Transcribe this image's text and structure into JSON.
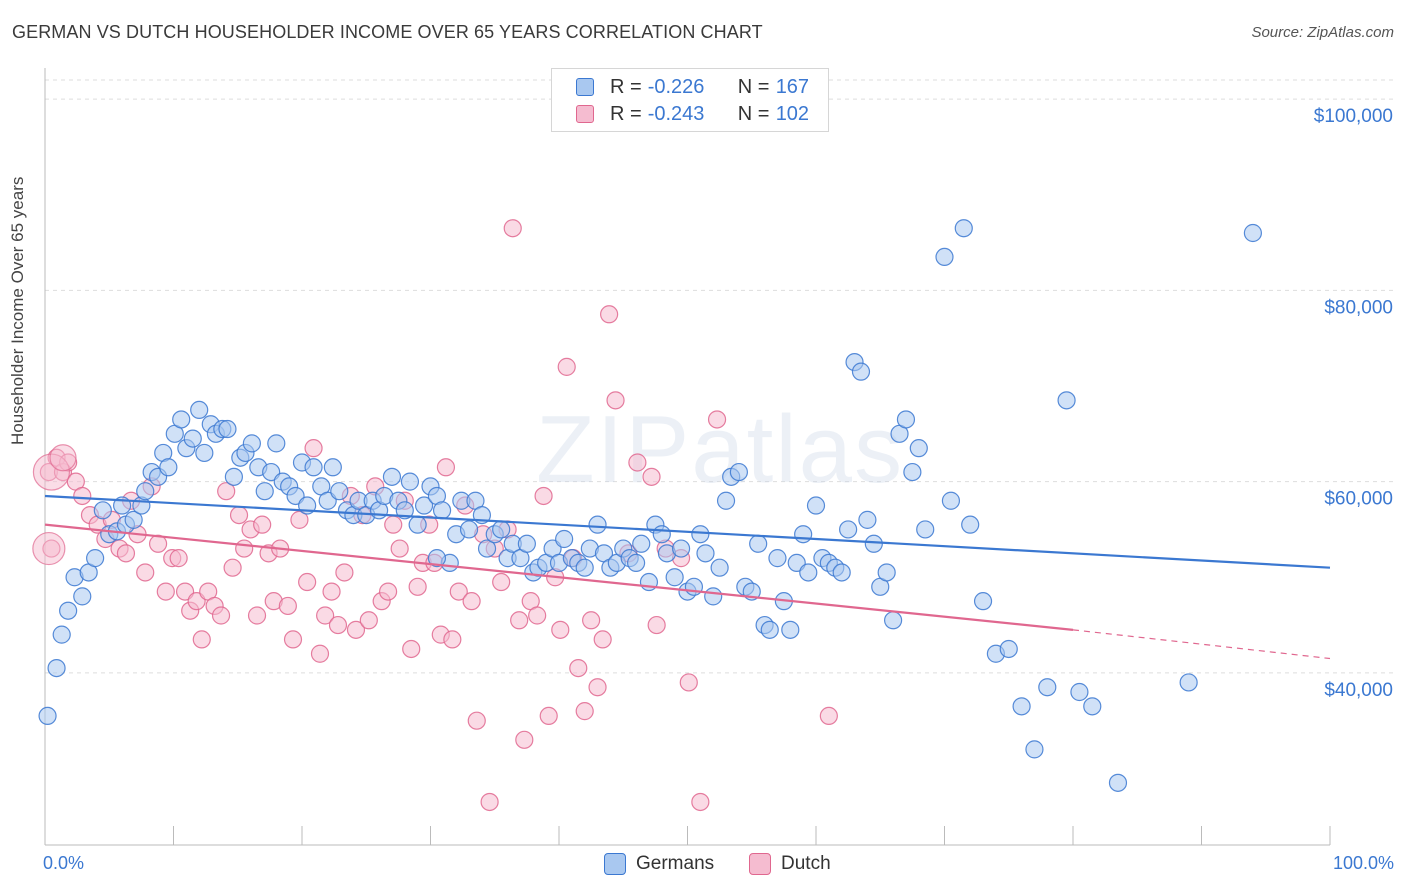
{
  "title": "GERMAN VS DUTCH HOUSEHOLDER INCOME OVER 65 YEARS CORRELATION CHART",
  "source": "Source: ZipAtlas.com",
  "watermark": "ZIPatlas",
  "colors": {
    "german": "#3b78d1",
    "german_fill": "#a9c8f0",
    "dutch": "#e0678f",
    "dutch_fill": "#f5bcd0",
    "axis_text": "#3b78d1",
    "grid": "#dddddd"
  },
  "legend": {
    "row1": {
      "r_label": "R =",
      "r_value": "-0.226",
      "n_label": "N =",
      "n_value": "167"
    },
    "row2": {
      "r_label": "R =",
      "r_value": "-0.243",
      "n_label": "N =",
      "n_value": "102"
    }
  },
  "bottom_legend": {
    "german": "Germans",
    "dutch": "Dutch"
  },
  "chart_data": {
    "type": "scatter",
    "title": "GERMAN VS DUTCH HOUSEHOLDER INCOME OVER 65 YEARS CORRELATION CHART",
    "xlabel": "",
    "ylabel": "Householder Income Over 65 years",
    "xlim": [
      0,
      100
    ],
    "ylim": [
      22000,
      102000
    ],
    "x_tick_labels": [
      "0.0%",
      "100.0%"
    ],
    "y_ticks": [
      40000,
      60000,
      80000,
      100000
    ],
    "y_tick_labels": [
      "$40,000",
      "$60,000",
      "$80,000",
      "$100,000"
    ],
    "legend_position": "top-center",
    "series": [
      {
        "name": "Germans",
        "r": -0.226,
        "n": 167,
        "trend": {
          "x0": 0,
          "y0": 58500,
          "x1": 100,
          "y1": 51000
        },
        "points": [
          [
            0.2,
            35500
          ],
          [
            0.9,
            40500
          ],
          [
            1.3,
            44000
          ],
          [
            1.8,
            46500
          ],
          [
            2.3,
            50000
          ],
          [
            2.9,
            48000
          ],
          [
            3.4,
            50500
          ],
          [
            3.9,
            52000
          ],
          [
            4.5,
            57000
          ],
          [
            5.0,
            54500
          ],
          [
            5.6,
            54800
          ],
          [
            6.0,
            57500
          ],
          [
            6.3,
            55500
          ],
          [
            6.9,
            56000
          ],
          [
            7.5,
            57500
          ],
          [
            7.8,
            59000
          ],
          [
            8.3,
            61000
          ],
          [
            8.8,
            60500
          ],
          [
            9.2,
            63000
          ],
          [
            9.6,
            61500
          ],
          [
            10.1,
            65000
          ],
          [
            10.6,
            66500
          ],
          [
            11.0,
            63500
          ],
          [
            11.5,
            64500
          ],
          [
            12.0,
            67500
          ],
          [
            12.4,
            63000
          ],
          [
            12.9,
            66000
          ],
          [
            13.3,
            65000
          ],
          [
            13.8,
            65500
          ],
          [
            14.2,
            65500
          ],
          [
            14.7,
            60500
          ],
          [
            15.2,
            62500
          ],
          [
            15.6,
            63000
          ],
          [
            16.1,
            64000
          ],
          [
            16.6,
            61500
          ],
          [
            17.1,
            59000
          ],
          [
            17.6,
            61000
          ],
          [
            18.0,
            64000
          ],
          [
            18.5,
            60000
          ],
          [
            19.0,
            59500
          ],
          [
            19.5,
            58500
          ],
          [
            20.0,
            62000
          ],
          [
            20.4,
            57500
          ],
          [
            20.9,
            61500
          ],
          [
            21.5,
            59500
          ],
          [
            22.0,
            58000
          ],
          [
            22.4,
            61500
          ],
          [
            22.9,
            59000
          ],
          [
            23.5,
            57000
          ],
          [
            24.0,
            56500
          ],
          [
            24.4,
            58000
          ],
          [
            25.0,
            56500
          ],
          [
            25.5,
            58000
          ],
          [
            26.0,
            57000
          ],
          [
            26.4,
            58500
          ],
          [
            27.0,
            60500
          ],
          [
            27.5,
            58000
          ],
          [
            28.0,
            57000
          ],
          [
            28.4,
            60000
          ],
          [
            29.0,
            55500
          ],
          [
            29.5,
            57500
          ],
          [
            30.0,
            59500
          ],
          [
            30.5,
            58500
          ],
          [
            30.9,
            57000
          ],
          [
            31.5,
            51500
          ],
          [
            32.0,
            54500
          ],
          [
            32.4,
            58000
          ],
          [
            33.0,
            55000
          ],
          [
            33.5,
            58000
          ],
          [
            34.0,
            56500
          ],
          [
            34.4,
            53000
          ],
          [
            35.0,
            54500
          ],
          [
            35.5,
            55000
          ],
          [
            36.0,
            52000
          ],
          [
            36.4,
            53500
          ],
          [
            37.0,
            52000
          ],
          [
            37.5,
            53500
          ],
          [
            38.0,
            50500
          ],
          [
            38.4,
            51000
          ],
          [
            39.0,
            51500
          ],
          [
            39.5,
            53000
          ],
          [
            40.0,
            51500
          ],
          [
            40.4,
            54000
          ],
          [
            41.0,
            52000
          ],
          [
            41.5,
            51500
          ],
          [
            42.0,
            51000
          ],
          [
            42.4,
            53000
          ],
          [
            43.0,
            55500
          ],
          [
            43.5,
            52500
          ],
          [
            44.0,
            51000
          ],
          [
            44.5,
            51500
          ],
          [
            45.0,
            53000
          ],
          [
            45.5,
            52000
          ],
          [
            46.0,
            51500
          ],
          [
            46.4,
            53500
          ],
          [
            47.0,
            49500
          ],
          [
            47.5,
            55500
          ],
          [
            48.0,
            54500
          ],
          [
            48.4,
            52500
          ],
          [
            49.0,
            50000
          ],
          [
            49.5,
            53000
          ],
          [
            50.0,
            48500
          ],
          [
            50.5,
            49000
          ],
          [
            51.0,
            54500
          ],
          [
            51.4,
            52500
          ],
          [
            52.0,
            48000
          ],
          [
            52.5,
            51000
          ],
          [
            53.0,
            58000
          ],
          [
            53.4,
            60500
          ],
          [
            54.0,
            61000
          ],
          [
            54.5,
            49000
          ],
          [
            55.0,
            48500
          ],
          [
            55.5,
            53500
          ],
          [
            56.0,
            45000
          ],
          [
            56.4,
            44500
          ],
          [
            57.0,
            52000
          ],
          [
            57.5,
            47500
          ],
          [
            58.0,
            44500
          ],
          [
            58.5,
            51500
          ],
          [
            59.0,
            54500
          ],
          [
            59.4,
            50500
          ],
          [
            60.0,
            57500
          ],
          [
            60.5,
            52000
          ],
          [
            61.0,
            51500
          ],
          [
            61.5,
            51000
          ],
          [
            62.0,
            50500
          ],
          [
            62.5,
            55000
          ],
          [
            63.0,
            72500
          ],
          [
            63.5,
            71500
          ],
          [
            64.0,
            56000
          ],
          [
            64.5,
            53500
          ],
          [
            65.0,
            49000
          ],
          [
            65.5,
            50500
          ],
          [
            66.0,
            45500
          ],
          [
            66.5,
            65000
          ],
          [
            67.0,
            66500
          ],
          [
            67.5,
            61000
          ],
          [
            68.0,
            63500
          ],
          [
            68.5,
            55000
          ],
          [
            70.0,
            83500
          ],
          [
            70.5,
            58000
          ],
          [
            71.5,
            86500
          ],
          [
            72.0,
            55500
          ],
          [
            73.0,
            47500
          ],
          [
            74.0,
            42000
          ],
          [
            75.0,
            42500
          ],
          [
            76.0,
            36500
          ],
          [
            77.0,
            32000
          ],
          [
            78.0,
            38500
          ],
          [
            79.5,
            68500
          ],
          [
            80.5,
            38000
          ],
          [
            81.5,
            36500
          ],
          [
            83.5,
            28500
          ],
          [
            89.0,
            39000
          ],
          [
            94.0,
            86000
          ],
          [
            30.5,
            52000
          ]
        ]
      },
      {
        "name": "Dutch",
        "r": -0.243,
        "n": 102,
        "trend": {
          "x0": 0,
          "y0": 55500,
          "x1": 80,
          "y1": 44500
        },
        "trend_dashed": {
          "x0": 80,
          "y0": 44500,
          "x1": 100,
          "y1": 41500
        },
        "points": [
          [
            0.3,
            61000
          ],
          [
            0.5,
            53000
          ],
          [
            0.9,
            62500
          ],
          [
            1.4,
            61000
          ],
          [
            1.8,
            62000
          ],
          [
            2.4,
            60000
          ],
          [
            2.9,
            58500
          ],
          [
            3.5,
            56500
          ],
          [
            4.1,
            55500
          ],
          [
            4.7,
            54000
          ],
          [
            5.2,
            56000
          ],
          [
            5.8,
            53000
          ],
          [
            6.3,
            52500
          ],
          [
            6.7,
            58000
          ],
          [
            7.2,
            54500
          ],
          [
            7.8,
            50500
          ],
          [
            8.3,
            59500
          ],
          [
            8.8,
            53500
          ],
          [
            9.4,
            48500
          ],
          [
            9.9,
            52000
          ],
          [
            10.4,
            52000
          ],
          [
            10.9,
            48500
          ],
          [
            11.3,
            46500
          ],
          [
            11.8,
            47500
          ],
          [
            12.2,
            43500
          ],
          [
            12.7,
            48500
          ],
          [
            13.2,
            47000
          ],
          [
            13.7,
            46000
          ],
          [
            14.1,
            59000
          ],
          [
            14.6,
            51000
          ],
          [
            15.1,
            56500
          ],
          [
            15.5,
            53000
          ],
          [
            16.0,
            55000
          ],
          [
            16.5,
            46000
          ],
          [
            16.9,
            55500
          ],
          [
            17.4,
            52500
          ],
          [
            17.8,
            47500
          ],
          [
            18.3,
            53000
          ],
          [
            18.9,
            47000
          ],
          [
            19.3,
            43500
          ],
          [
            19.8,
            56000
          ],
          [
            20.4,
            49500
          ],
          [
            20.9,
            63500
          ],
          [
            21.4,
            42000
          ],
          [
            21.8,
            46000
          ],
          [
            22.3,
            48500
          ],
          [
            22.8,
            45000
          ],
          [
            23.3,
            50500
          ],
          [
            23.8,
            58500
          ],
          [
            24.2,
            44500
          ],
          [
            24.7,
            56500
          ],
          [
            25.2,
            45500
          ],
          [
            25.7,
            59500
          ],
          [
            26.2,
            47500
          ],
          [
            26.7,
            48500
          ],
          [
            27.1,
            55500
          ],
          [
            27.6,
            53000
          ],
          [
            28.0,
            58000
          ],
          [
            28.5,
            42500
          ],
          [
            29.0,
            49000
          ],
          [
            29.4,
            51500
          ],
          [
            29.9,
            55500
          ],
          [
            30.3,
            51500
          ],
          [
            30.8,
            44000
          ],
          [
            31.2,
            61500
          ],
          [
            31.7,
            43500
          ],
          [
            32.2,
            48500
          ],
          [
            32.7,
            57500
          ],
          [
            33.2,
            47500
          ],
          [
            33.6,
            35000
          ],
          [
            34.1,
            54500
          ],
          [
            34.6,
            26500
          ],
          [
            35.0,
            53000
          ],
          [
            35.5,
            49500
          ],
          [
            36.0,
            55000
          ],
          [
            36.4,
            86500
          ],
          [
            36.9,
            45500
          ],
          [
            37.3,
            33000
          ],
          [
            37.8,
            47500
          ],
          [
            38.3,
            46000
          ],
          [
            38.8,
            58500
          ],
          [
            39.2,
            35500
          ],
          [
            39.7,
            50000
          ],
          [
            40.1,
            44500
          ],
          [
            40.6,
            72000
          ],
          [
            41.1,
            52000
          ],
          [
            41.5,
            40500
          ],
          [
            42.0,
            36000
          ],
          [
            42.5,
            45500
          ],
          [
            43.0,
            38500
          ],
          [
            43.4,
            43500
          ],
          [
            43.9,
            77500
          ],
          [
            44.4,
            68500
          ],
          [
            45.4,
            52500
          ],
          [
            46.1,
            62000
          ],
          [
            47.2,
            60500
          ],
          [
            47.6,
            45000
          ],
          [
            48.3,
            53000
          ],
          [
            49.5,
            52000
          ],
          [
            50.1,
            39000
          ],
          [
            51.0,
            26500
          ],
          [
            52.3,
            66500
          ],
          [
            61.0,
            35500
          ]
        ]
      }
    ]
  }
}
